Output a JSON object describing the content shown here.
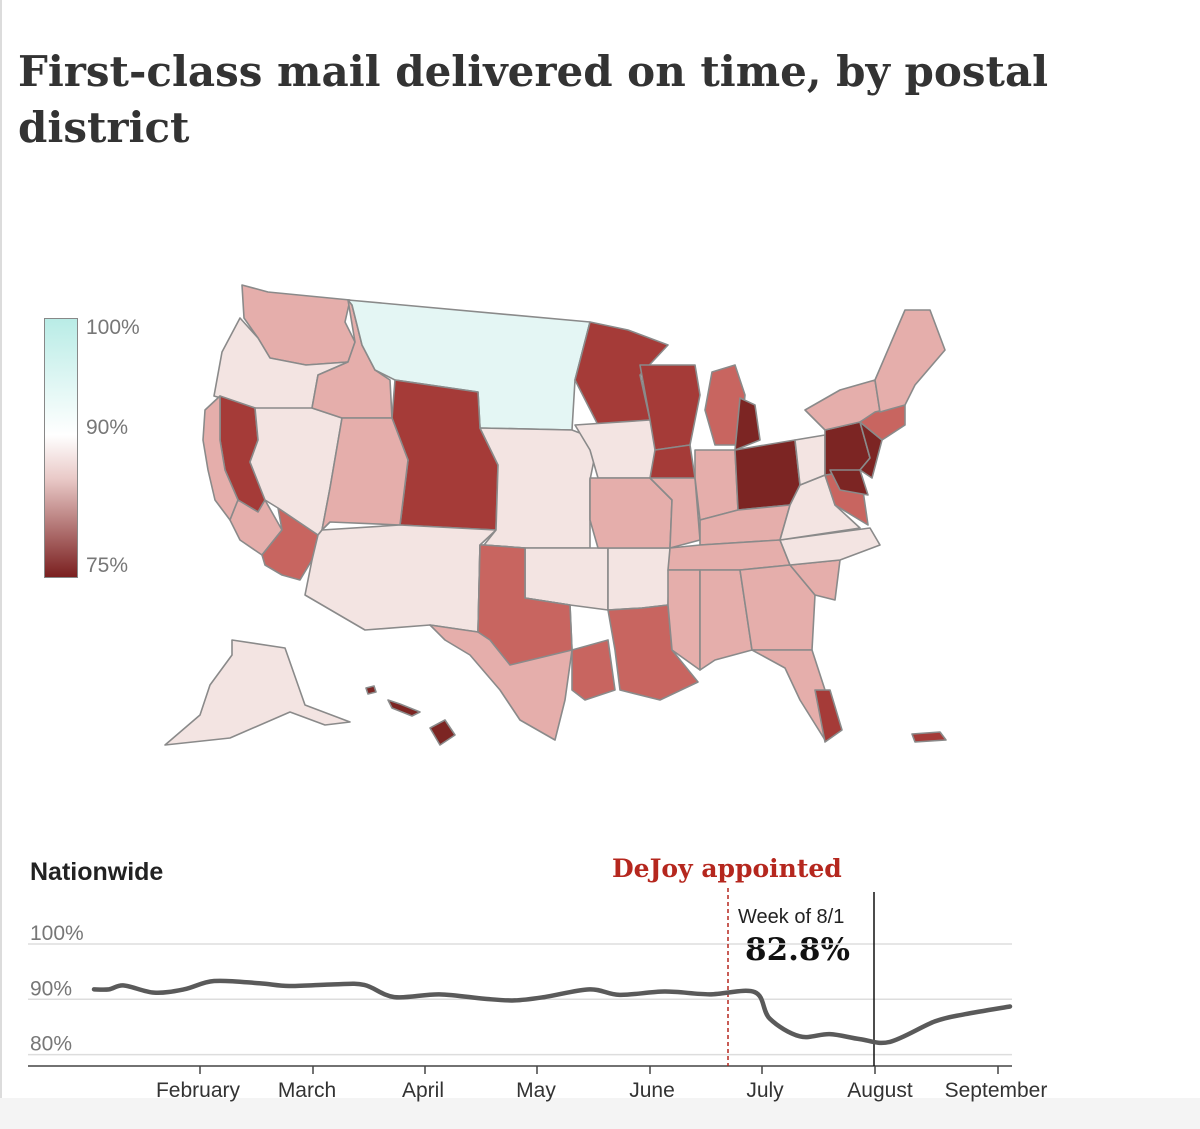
{
  "title": "First-class mail delivered on time, by postal district",
  "legend": {
    "labels": [
      "100%",
      "90%",
      "75%"
    ],
    "colors": {
      "high": "#b9ece6",
      "mid": "#ffffff",
      "low": "#7a1f1f"
    }
  },
  "map": {
    "colors": {
      "near_90": "#f3e4e2",
      "light": "#e5aeab",
      "medium": "#c86560",
      "dark": "#a53b38",
      "darkest": "#7c2523",
      "above_90": "#e4f6f4",
      "stroke": "#8a8a8a"
    }
  },
  "chart_data": [
    {
      "type": "line",
      "title": "Nationwide",
      "series": [
        {
          "values": [
            [
              0.0,
              91.8
            ],
            [
              0.1,
              91.8
            ],
            [
              0.2,
              92.5
            ],
            [
              0.4,
              91.2
            ],
            [
              0.6,
              91.8
            ],
            [
              0.8,
              93.3
            ],
            [
              1.1,
              92.9
            ],
            [
              1.3,
              92.4
            ],
            [
              1.6,
              92.7
            ],
            [
              1.8,
              92.6
            ],
            [
              2.0,
              90.4
            ],
            [
              2.3,
              90.9
            ],
            [
              2.6,
              90.1
            ],
            [
              2.8,
              89.8
            ],
            [
              3.0,
              90.4
            ],
            [
              3.3,
              91.8
            ],
            [
              3.5,
              90.8
            ],
            [
              3.8,
              91.4
            ],
            [
              4.1,
              90.9
            ],
            [
              4.4,
              91.3
            ],
            [
              4.5,
              86.5
            ],
            [
              4.7,
              83.3
            ],
            [
              4.9,
              83.7
            ],
            [
              5.1,
              82.8
            ],
            [
              5.3,
              82.3
            ],
            [
              5.6,
              86.0
            ],
            [
              5.8,
              87.3
            ],
            [
              6.1,
              88.7
            ]
          ]
        }
      ],
      "x_ticks": [
        "February",
        "March",
        "April",
        "May",
        "June",
        "July",
        "August",
        "September"
      ],
      "y_ticks": [
        "100%",
        "90%",
        "80%"
      ],
      "ylim": [
        78.3,
        100
      ],
      "annotations": {
        "event_label": "DeJoy appointed",
        "highlight_label": "Week of 8/1",
        "highlight_value": "82.8%"
      },
      "colors": {
        "line": "#5a5a5a",
        "event": "#b5271e",
        "grid": "#dddddd"
      },
      "grid": true
    }
  ]
}
